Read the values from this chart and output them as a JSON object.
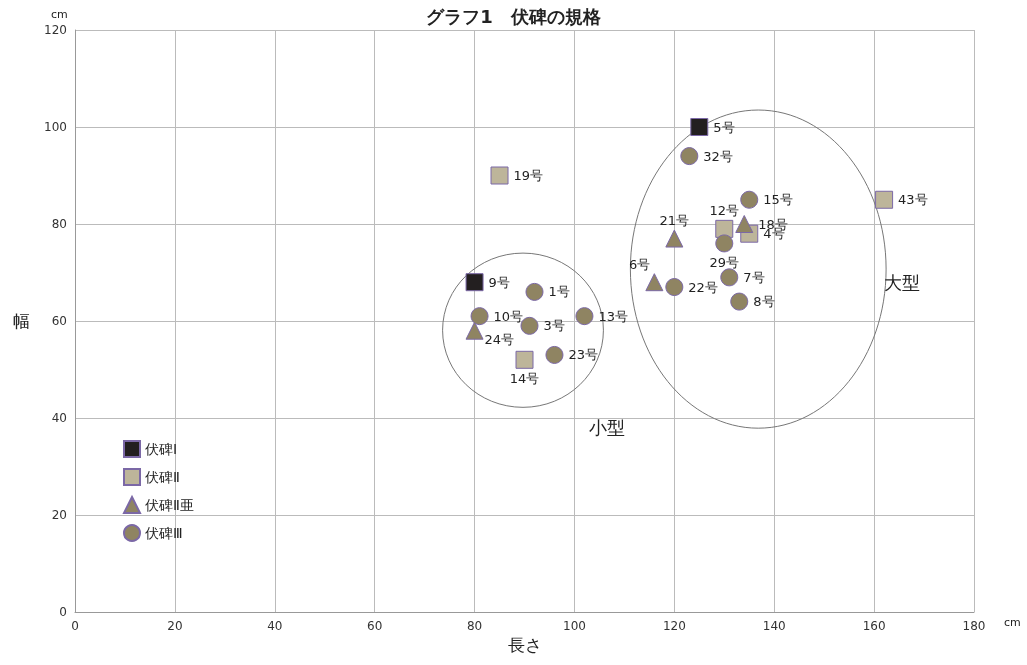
{
  "chart_data": {
    "type": "scatter",
    "title": "グラフ1　伏碑の規格",
    "xlabel": "長さ",
    "ylabel": "幅",
    "xlim": [
      0,
      180
    ],
    "xticks": [
      0,
      20,
      40,
      60,
      80,
      100,
      120,
      140,
      160,
      180
    ],
    "ylim": [
      0,
      120
    ],
    "yticks": [
      0,
      20,
      40,
      60,
      80,
      100,
      120
    ],
    "grid": true,
    "legend": "bottom left",
    "series": [
      {
        "name": "伏碑Ⅰ",
        "color": "#231f20",
        "marker": "square",
        "x": [
          80,
          125
        ],
        "values": [
          68,
          100
        ]
      },
      {
        "name": "伏碑Ⅱ",
        "color": "#bdb59a",
        "marker": "square",
        "x": [
          85,
          90,
          130,
          135,
          162
        ],
        "values": [
          90,
          52,
          79,
          78,
          85
        ]
      },
      {
        "name": "伏碑Ⅱ亜",
        "color": "#8f8462",
        "marker": "triangle",
        "x": [
          80,
          120,
          116,
          134
        ],
        "values": [
          58,
          77,
          68,
          80
        ]
      },
      {
        "name": "伏碑Ⅲ",
        "color": "#8f8462",
        "marker": "circle",
        "x": [
          92,
          81,
          91,
          102,
          96,
          123,
          135,
          130,
          131,
          120,
          133
        ],
        "values": [
          66,
          61,
          59,
          61,
          53,
          94,
          85,
          76,
          69,
          67,
          64
        ]
      }
    ],
    "annotations": [
      "cm",
      "cm",
      "小型",
      "大型",
      {
        "text": "9号",
        "x": 80,
        "y": 68
      },
      {
        "text": "5号",
        "x": 125,
        "y": 100
      },
      {
        "text": "19号",
        "x": 85,
        "y": 90
      },
      {
        "text": "14号",
        "x": 90,
        "y": 52
      },
      {
        "text": "12号",
        "x": 130,
        "y": 79
      },
      {
        "text": "4号",
        "x": 135,
        "y": 78
      },
      {
        "text": "43号",
        "x": 162,
        "y": 85
      },
      {
        "text": "24号",
        "x": 80,
        "y": 58
      },
      {
        "text": "21号",
        "x": 120,
        "y": 77
      },
      {
        "text": "6号",
        "x": 116,
        "y": 68
      },
      {
        "text": "18号",
        "x": 134,
        "y": 80
      },
      {
        "text": "1号",
        "x": 92,
        "y": 66
      },
      {
        "text": "10号",
        "x": 81,
        "y": 61
      },
      {
        "text": "3号",
        "x": 91,
        "y": 59
      },
      {
        "text": "13号",
        "x": 102,
        "y": 61
      },
      {
        "text": "23号",
        "x": 96,
        "y": 53
      },
      {
        "text": "32号",
        "x": 123,
        "y": 94
      },
      {
        "text": "15号",
        "x": 135,
        "y": 85
      },
      {
        "text": "29号",
        "x": 130,
        "y": 76
      },
      {
        "text": "7号",
        "x": 131,
        "y": 69
      },
      {
        "text": "22号",
        "x": 120,
        "y": 67
      },
      {
        "text": "8号",
        "x": 133,
        "y": 64
      }
    ]
  }
}
